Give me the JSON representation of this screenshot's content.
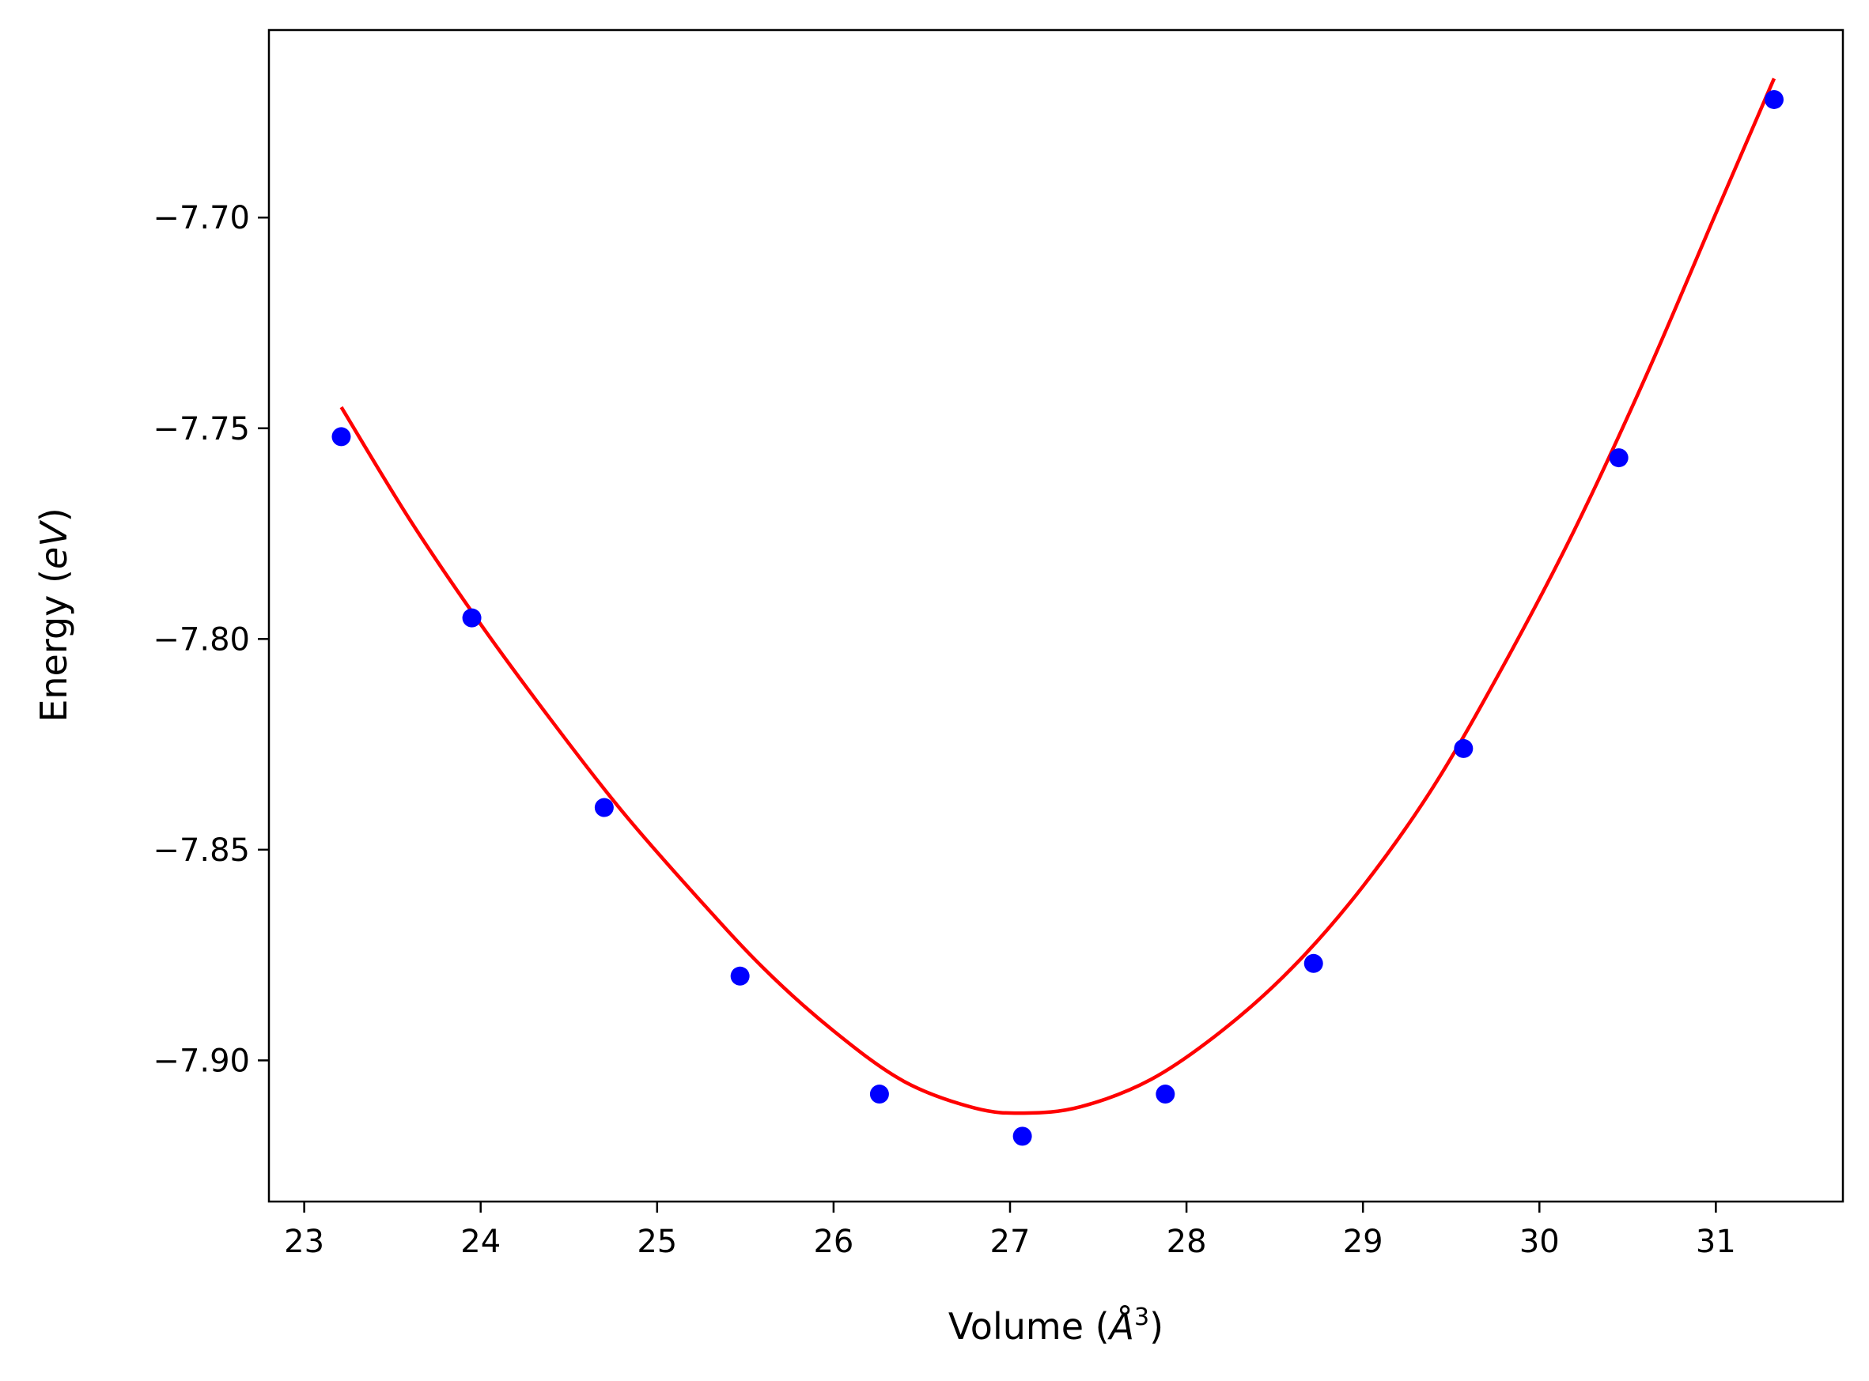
{
  "chart_data": {
    "type": "scatter",
    "title": "",
    "xlabel": {
      "pre": "Volume (",
      "symbol": "Å",
      "sup": "3",
      "post": ")"
    },
    "ylabel": {
      "pre": "Energy (",
      "italic": "eV",
      "post": ")"
    },
    "xlim": [
      22.8,
      31.72
    ],
    "ylim": [
      -7.9335,
      -7.6555
    ],
    "x_ticks": [
      23,
      24,
      25,
      26,
      27,
      28,
      29,
      30,
      31
    ],
    "x_tick_labels": [
      "23",
      "24",
      "25",
      "26",
      "27",
      "28",
      "29",
      "30",
      "31"
    ],
    "y_ticks": [
      -7.9,
      -7.85,
      -7.8,
      -7.75,
      -7.7
    ],
    "y_tick_labels": [
      "−7.90",
      "−7.85",
      "−7.80",
      "−7.75",
      "−7.70"
    ],
    "grid": false,
    "legend": false,
    "series": [
      {
        "kind": "points",
        "color": "#0000ff",
        "x": [
          23.21,
          23.95,
          24.7,
          25.47,
          26.26,
          27.07,
          27.88,
          28.72,
          29.57,
          30.45,
          31.33
        ],
        "y": [
          -7.752,
          -7.795,
          -7.84,
          -7.88,
          -7.908,
          -7.918,
          -7.908,
          -7.877,
          -7.826,
          -7.757,
          -7.672
        ]
      },
      {
        "kind": "fit-line",
        "color": "#ff0000",
        "x": [
          23.21,
          23.6,
          24.0,
          24.4,
          24.8,
          25.2,
          25.6,
          26.0,
          26.4,
          26.8,
          27.08,
          27.4,
          27.8,
          28.2,
          28.6,
          29.0,
          29.4,
          29.8,
          30.2,
          30.6,
          31.0,
          31.33
        ],
        "y": [
          -7.745,
          -7.7718,
          -7.7965,
          -7.8193,
          -7.8408,
          -7.86,
          -7.878,
          -7.893,
          -7.905,
          -7.9113,
          -7.9125,
          -7.911,
          -7.9045,
          -7.893,
          -7.878,
          -7.8587,
          -7.835,
          -7.806,
          -7.774,
          -7.738,
          -7.699,
          -7.667
        ]
      }
    ]
  }
}
